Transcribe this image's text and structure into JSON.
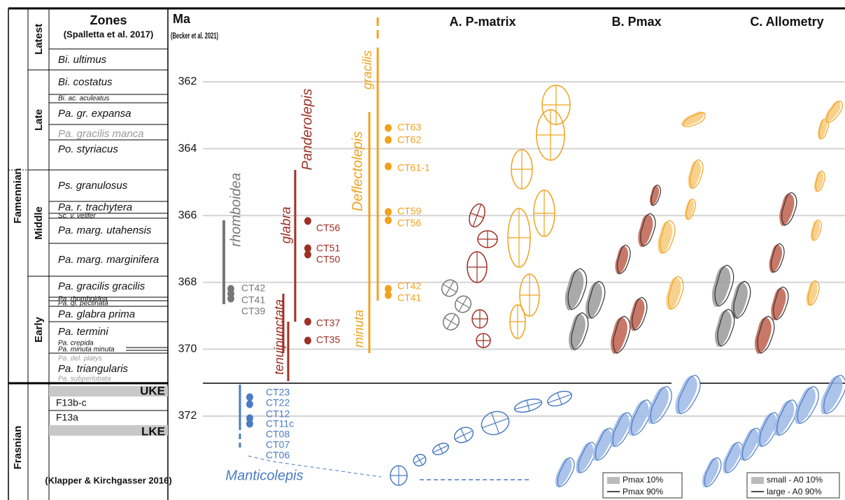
{
  "stages": [
    "Famennian",
    "Frasnian"
  ],
  "substages": [
    "Latest",
    "Late",
    "Middle",
    "Early"
  ],
  "zones_header": {
    "title": "Zones",
    "source": "(Spalletta et al. 2017)"
  },
  "zones": [
    "Bi. ultimus",
    "Bi. costatus",
    "Bi. ac. aculeatus",
    "Pa. gr. expansa",
    "Pa. gracilis manca",
    "Po. styriacus",
    "Ps. granulosus",
    "Pa. r. trachytera",
    "Sc. v. velifer",
    "Pa. marg. utahensis",
    "Pa. marg. marginifera",
    "Pa. gracilis gracilis",
    "Pa. rhomboidea",
    "Pa. gl. pectinata",
    "Pa. glabra prima",
    "Pa. termini",
    "Pa. crepida",
    "Pa. minuta minuta",
    "Pa. del. platys",
    "Pa. triangularis",
    "Pa. subperlobata"
  ],
  "frasnian_zones": [
    "UKE",
    "F13b-c",
    "F13a",
    "LKE",
    "(Klapper & Kirchgasser 2016)"
  ],
  "ma_header": {
    "title": "Ma",
    "source": "(Becker et al. 2021)"
  },
  "ma_ticks": [
    362,
    364,
    366,
    368,
    370,
    372
  ],
  "lineages": [
    "rhomboidea",
    "glabra",
    "tenuipunctata",
    "Panderolepis",
    "Deflectolepis",
    "gracilis",
    "minuta",
    "Manticolepis"
  ],
  "samples": {
    "gray": [
      "CT42",
      "CT41",
      "CT39"
    ],
    "red": [
      "CT56",
      "CT51",
      "CT50",
      "CT37",
      "CT35"
    ],
    "orange": [
      "CT63",
      "CT62",
      "CT61-1",
      "CT59",
      "CT56",
      "CT42",
      "CT41"
    ],
    "blue": [
      "CT23",
      "CT22",
      "CT12",
      "CT11c",
      "CT08",
      "CT07",
      "CT06"
    ]
  },
  "panels": [
    "A. P-matrix",
    "B. Pmax",
    "C. Allometry"
  ],
  "legends": [
    [
      "Pmax 10%",
      "Pmax 90%"
    ],
    [
      "small - A0 10%",
      "large - A0 90%"
    ]
  ]
}
